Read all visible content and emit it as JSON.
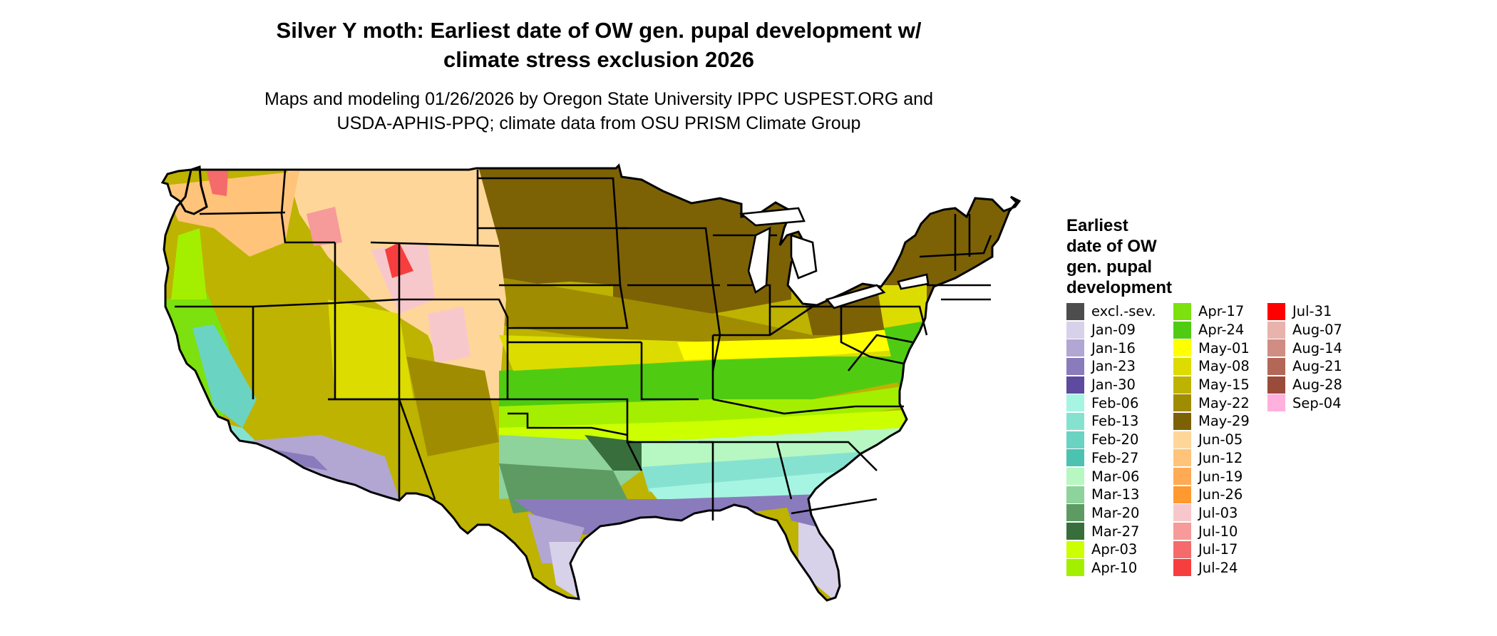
{
  "title_line1": "Silver Y moth: Earliest date of OW gen. pupal development w/",
  "title_line2": "climate stress exclusion 2026",
  "subtitle_line1": "Maps and modeling 01/26/2026 by Oregon State University IPPC USPEST.ORG and",
  "subtitle_line2": "USDA-APHIS-PPQ; climate data from OSU PRISM Climate Group",
  "legend": {
    "title_lines": [
      "Earliest",
      "date of OW",
      "gen. pupal",
      "development"
    ],
    "columns": [
      [
        {
          "label": "excl.-sev.",
          "color": "#4d4d4d"
        },
        {
          "label": "Jan-09",
          "color": "#d8d1ea"
        },
        {
          "label": "Jan-16",
          "color": "#b2a6d2"
        },
        {
          "label": "Jan-23",
          "color": "#8a7bbc"
        },
        {
          "label": "Jan-30",
          "color": "#5e4a9e"
        },
        {
          "label": "Feb-06",
          "color": "#a6f5e2"
        },
        {
          "label": "Feb-13",
          "color": "#86e2d0"
        },
        {
          "label": "Feb-20",
          "color": "#6bd3c2"
        },
        {
          "label": "Feb-27",
          "color": "#4cc2b1"
        },
        {
          "label": "Mar-06",
          "color": "#b6f7c2"
        },
        {
          "label": "Mar-13",
          "color": "#8ed29c"
        },
        {
          "label": "Mar-20",
          "color": "#5d9b62"
        },
        {
          "label": "Mar-27",
          "color": "#376e3b"
        },
        {
          "label": "Apr-03",
          "color": "#ccff00"
        },
        {
          "label": "Apr-10",
          "color": "#a4ef00"
        }
      ],
      [
        {
          "label": "Apr-17",
          "color": "#7ce10f"
        },
        {
          "label": "Apr-24",
          "color": "#4fcc12"
        },
        {
          "label": "May-01",
          "color": "#ffff00"
        },
        {
          "label": "May-08",
          "color": "#dcdc00"
        },
        {
          "label": "May-15",
          "color": "#bdb300"
        },
        {
          "label": "May-22",
          "color": "#9f8c00"
        },
        {
          "label": "May-29",
          "color": "#7c6205"
        },
        {
          "label": "Jun-05",
          "color": "#ffd699"
        },
        {
          "label": "Jun-12",
          "color": "#ffc37a"
        },
        {
          "label": "Jun-19",
          "color": "#ffaa55"
        },
        {
          "label": "Jun-26",
          "color": "#ff9930"
        },
        {
          "label": "Jul-03",
          "color": "#f7c8cb"
        },
        {
          "label": "Jul-10",
          "color": "#f69a9a"
        },
        {
          "label": "Jul-17",
          "color": "#f56a6a"
        },
        {
          "label": "Jul-24",
          "color": "#f63e3e"
        }
      ],
      [
        {
          "label": "Jul-31",
          "color": "#ff0000"
        },
        {
          "label": "Aug-07",
          "color": "#e9b3ad"
        },
        {
          "label": "Aug-14",
          "color": "#cf8d84"
        },
        {
          "label": "Aug-21",
          "color": "#b26757"
        },
        {
          "label": "Aug-28",
          "color": "#9a4c3a"
        },
        {
          "label": "Sep-04",
          "color": "#ffb0dc"
        }
      ]
    ]
  }
}
